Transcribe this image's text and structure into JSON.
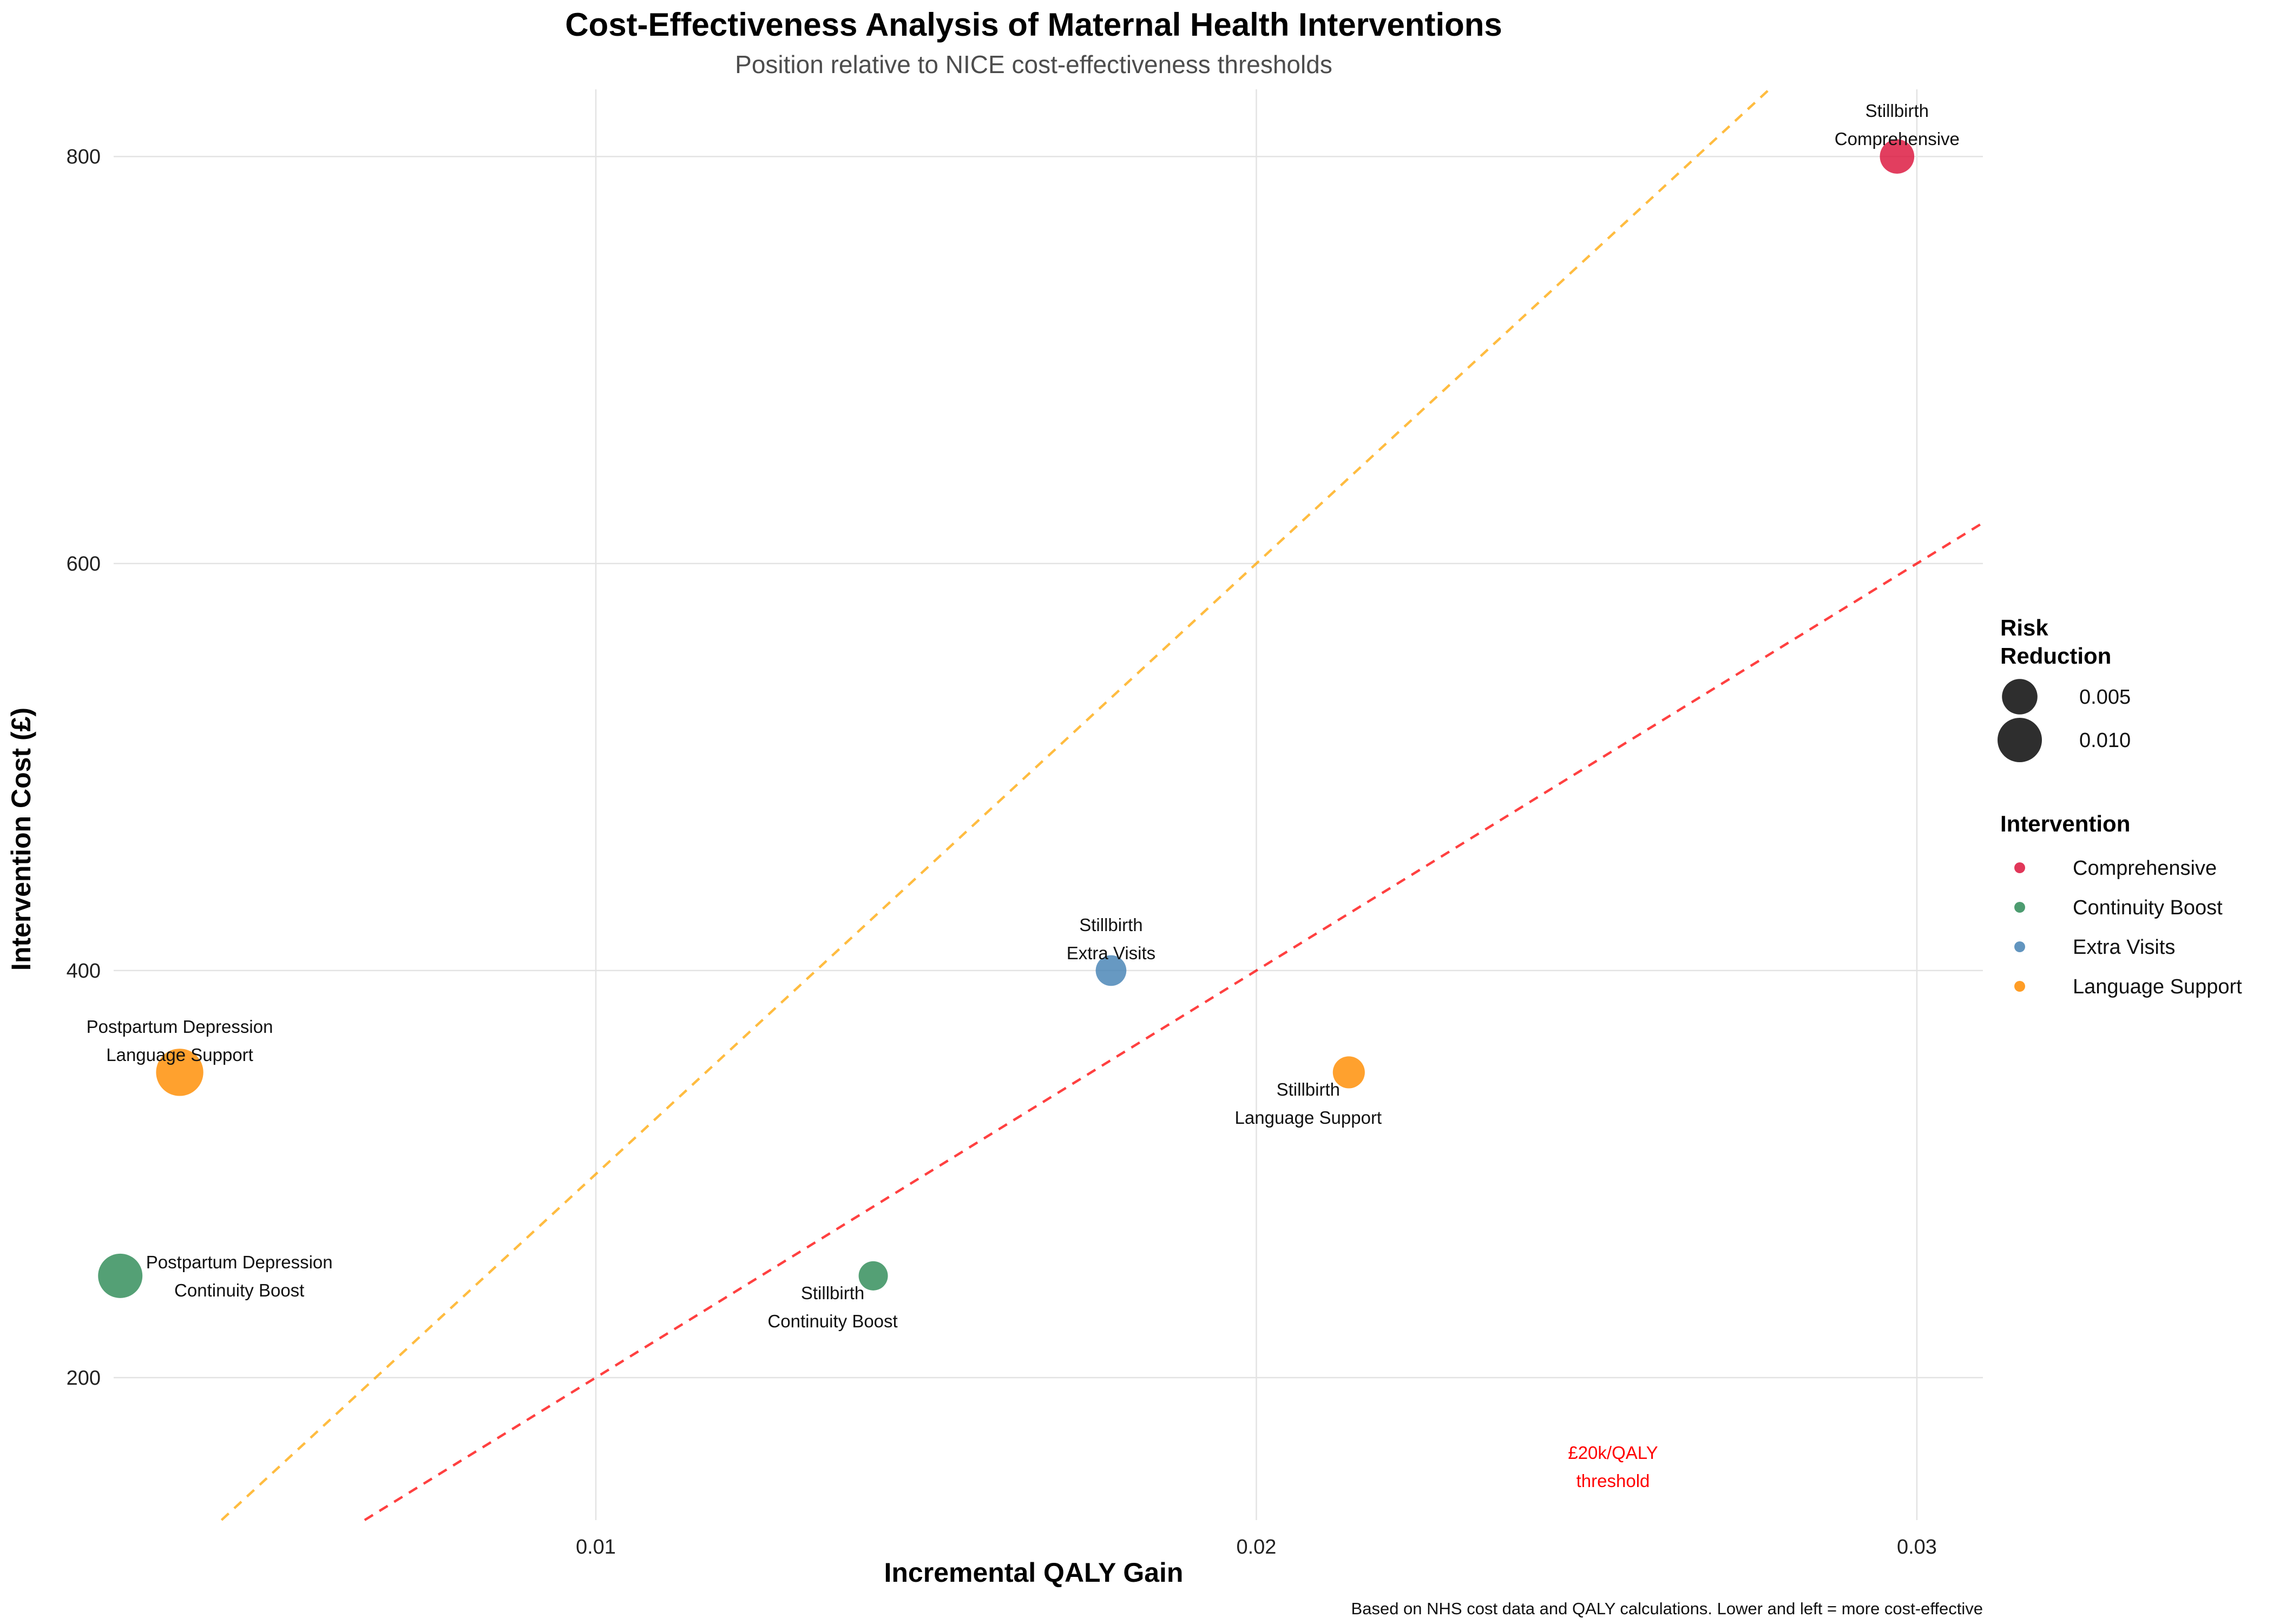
{
  "chart_data": {
    "type": "scatter",
    "title": "Cost-Effectiveness Analysis of Maternal Health Interventions",
    "subtitle": "Position relative to NICE cost-effectiveness thresholds",
    "xlabel": "Incremental QALY Gain",
    "ylabel": "Intervention Cost (£)",
    "caption": "Based on NHS cost data and QALY calculations. Lower and left = more cost-effective",
    "xlim": [
      0.0027,
      0.031
    ],
    "ylim": [
      130,
      833
    ],
    "x_ticks": [
      {
        "value": 0.01,
        "label": "0.01"
      },
      {
        "value": 0.02,
        "label": "0.02"
      },
      {
        "value": 0.03,
        "label": "0.03"
      }
    ],
    "y_ticks": [
      {
        "value": 200,
        "label": "200"
      },
      {
        "value": 400,
        "label": "400"
      },
      {
        "value": 600,
        "label": "600"
      },
      {
        "value": 800,
        "label": "800"
      }
    ],
    "grid": true,
    "colors": {
      "Comprehensive": "#dc143c",
      "Continuity Boost": "#2e8b57",
      "Extra Visits": "#4682b4",
      "Language Support": "#ff8c00"
    },
    "points": [
      {
        "condition": "Stillbirth",
        "intervention": "Comprehensive",
        "x": 0.0297,
        "y": 800,
        "risk_reduction": 0.0045,
        "label_position": "above"
      },
      {
        "condition": "Stillbirth",
        "intervention": "Extra Visits",
        "x": 0.0178,
        "y": 400,
        "risk_reduction": 0.003,
        "label_position": "above"
      },
      {
        "condition": "Stillbirth",
        "intervention": "Language Support",
        "x": 0.0214,
        "y": 350,
        "risk_reduction": 0.0035,
        "label_position": "below"
      },
      {
        "condition": "Stillbirth",
        "intervention": "Continuity Boost",
        "x": 0.0142,
        "y": 250,
        "risk_reduction": 0.0025,
        "label_position": "below"
      },
      {
        "condition": "Postpartum Depression",
        "intervention": "Language Support",
        "x": 0.0037,
        "y": 350,
        "risk_reduction": 0.012,
        "label_position": "above"
      },
      {
        "condition": "Postpartum Depression",
        "intervention": "Continuity Boost",
        "x": 0.0028,
        "y": 250,
        "risk_reduction": 0.01,
        "label_position": "right"
      }
    ],
    "threshold_lines": [
      {
        "cost_per_qaly": 20000,
        "color": "#ff0000"
      },
      {
        "cost_per_qaly": 30000,
        "color": "#ffa500"
      }
    ],
    "threshold_annotation": {
      "line1": "£20k/QALY",
      "line2": "threshold",
      "x": 0.0254,
      "y": 160
    },
    "legend": {
      "placement": "right",
      "size_title_line1": "Risk",
      "size_title_line2": "Reduction",
      "size_entries": [
        {
          "value": 0.005,
          "label": "0.005"
        },
        {
          "value": 0.01,
          "label": "0.010"
        }
      ],
      "color_title": "Intervention",
      "color_entries": [
        "Comprehensive",
        "Continuity Boost",
        "Extra Visits",
        "Language Support"
      ]
    }
  }
}
